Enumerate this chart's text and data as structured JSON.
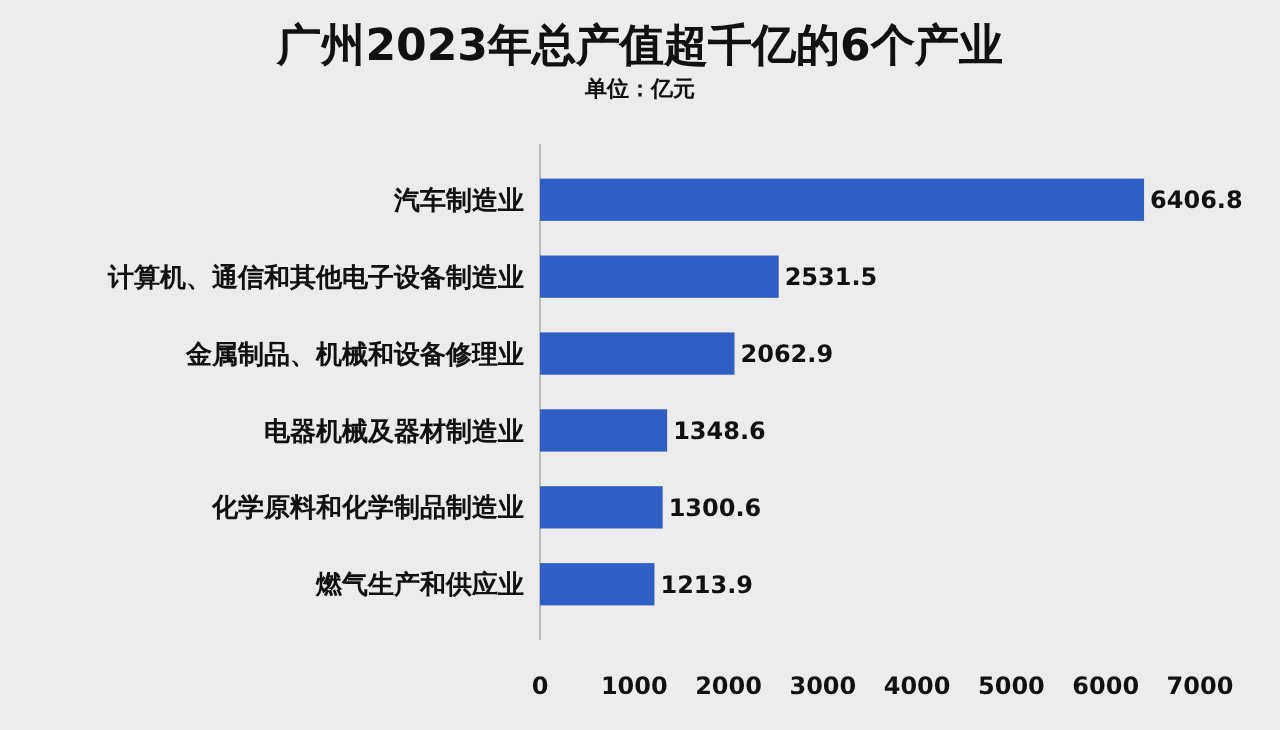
{
  "chart_data": {
    "type": "bar",
    "orientation": "horizontal",
    "title": "广州2023年总产值超千亿的6个产业",
    "subtitle": "单位：亿元",
    "categories": [
      "汽车制造业",
      "计算机、通信和其他电子设备制造业",
      "金属制品、机械和设备修理业",
      "电器机械及器材制造业",
      "化学原料和化学制品制造业",
      "燃气生产和供应业"
    ],
    "values": [
      6406.8,
      2531.5,
      2062.9,
      1348.6,
      1300.6,
      1213.9
    ],
    "color": "#2f5fc4",
    "xlim": [
      0,
      7000
    ],
    "xticks": [
      0,
      1000,
      2000,
      3000,
      4000,
      5000,
      6000,
      7000
    ],
    "grid": false,
    "data_labels": true
  }
}
